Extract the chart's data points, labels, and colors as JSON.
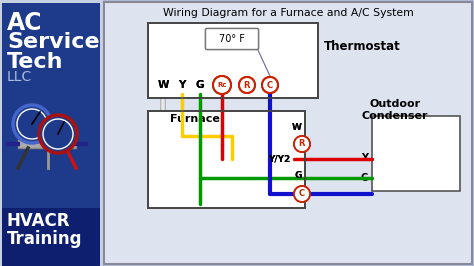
{
  "title": "Wiring Diagram for a Furnace and A/C System",
  "bg_left_top": "#e0e4ee",
  "bg_left_panel": "#1e3a8a",
  "bg_left_bottom": "#0d1f6e",
  "bg_main": "#dde4f0",
  "bg_outer": "#b0bcd8",
  "thermostat_label": "Thermostat",
  "thermostat_temp": "70° F",
  "thermostat_terminals": [
    "W",
    "Y",
    "G",
    "Rc",
    "R",
    "C"
  ],
  "furnace_label": "Furnace",
  "furnace_terminals": [
    "W",
    "R",
    "Y/Y2",
    "G",
    "C"
  ],
  "condenser_label1": "Outdoor",
  "condenser_label2": "Condenser",
  "condenser_terminals": [
    "Y",
    "C"
  ],
  "color_white": "#e8e8e8",
  "color_yellow": "#ffcc00",
  "color_green": "#009900",
  "color_red": "#dd0000",
  "color_blue": "#1111cc",
  "color_circle": "#cc2200"
}
